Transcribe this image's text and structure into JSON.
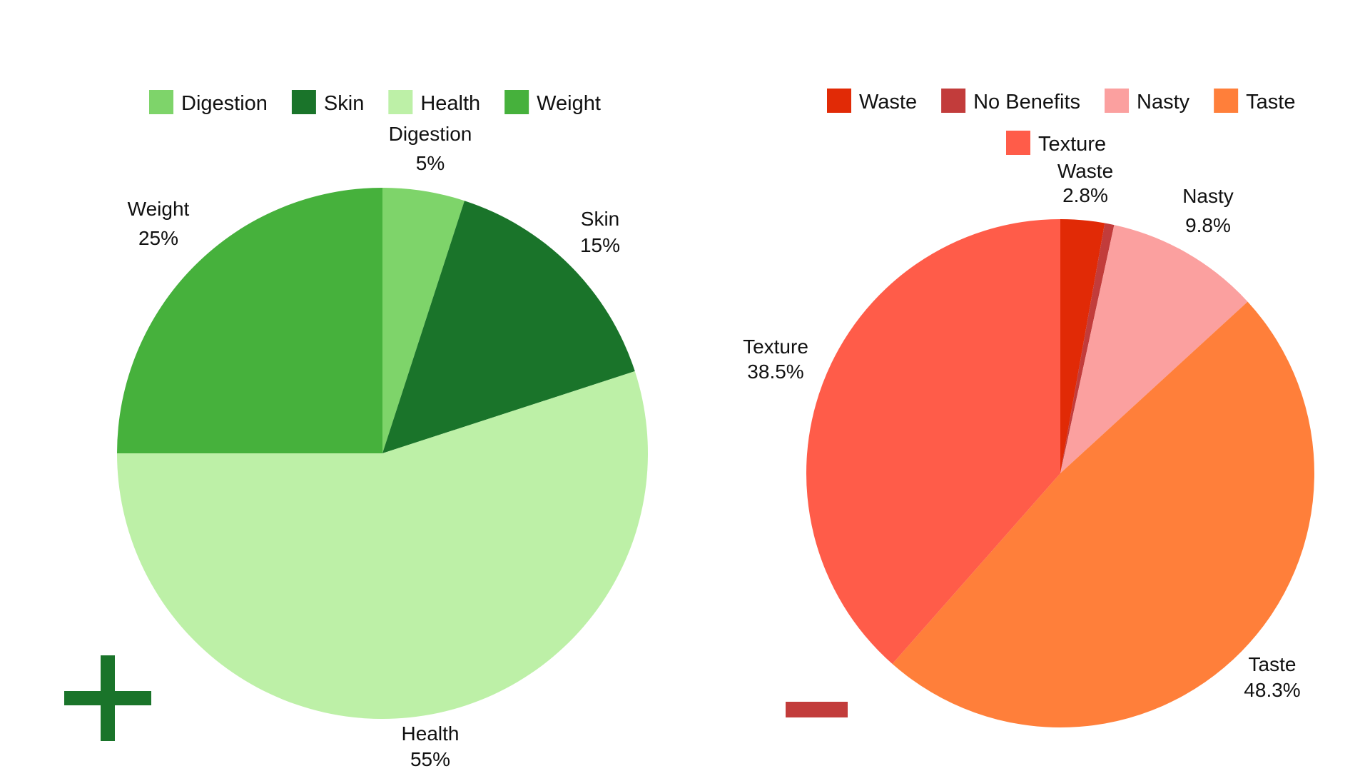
{
  "chart_data": [
    {
      "type": "pie",
      "categories": [
        "Digestion",
        "Skin",
        "Health",
        "Weight"
      ],
      "values": [
        5,
        15,
        55,
        25
      ],
      "colors": [
        "#7ed46a",
        "#1a742a",
        "#bdf0a7",
        "#46b13c"
      ],
      "slice_labels": [
        {
          "name": "Digestion",
          "value": "5%"
        },
        {
          "name": "Skin",
          "value": "15%"
        },
        {
          "name": "Health",
          "value": "55%"
        },
        {
          "name": "Weight",
          "value": "25%"
        }
      ],
      "legend": [
        "Digestion",
        "Skin",
        "Health",
        "Weight"
      ],
      "legend_position": "top",
      "start_angle_deg": 0,
      "direction": "clockwise"
    },
    {
      "type": "pie",
      "categories": [
        "Waste",
        "No Benefits",
        "Nasty",
        "Taste",
        "Texture"
      ],
      "values": [
        2.8,
        0.6,
        9.8,
        48.3,
        38.5
      ],
      "colors": [
        "#e12a06",
        "#c23c3b",
        "#fba09f",
        "#ff7f3a",
        "#ff5c49"
      ],
      "slice_labels": [
        {
          "name": "Waste",
          "value": "2.8%"
        },
        {
          "name": "",
          "value": ""
        },
        {
          "name": "Nasty",
          "value": "9.8%"
        },
        {
          "name": "Taste",
          "value": "48.3%"
        },
        {
          "name": "Texture",
          "value": "38.5%"
        }
      ],
      "legend": [
        "Waste",
        "No Benefits",
        "Nasty",
        "Taste",
        "Texture"
      ],
      "legend_position": "top",
      "start_angle_deg": 0,
      "direction": "clockwise"
    }
  ],
  "icons": {
    "positive": {
      "name": "plus-icon",
      "color": "#1a742a"
    },
    "negative": {
      "name": "minus-icon",
      "color": "#c23c3b"
    }
  }
}
